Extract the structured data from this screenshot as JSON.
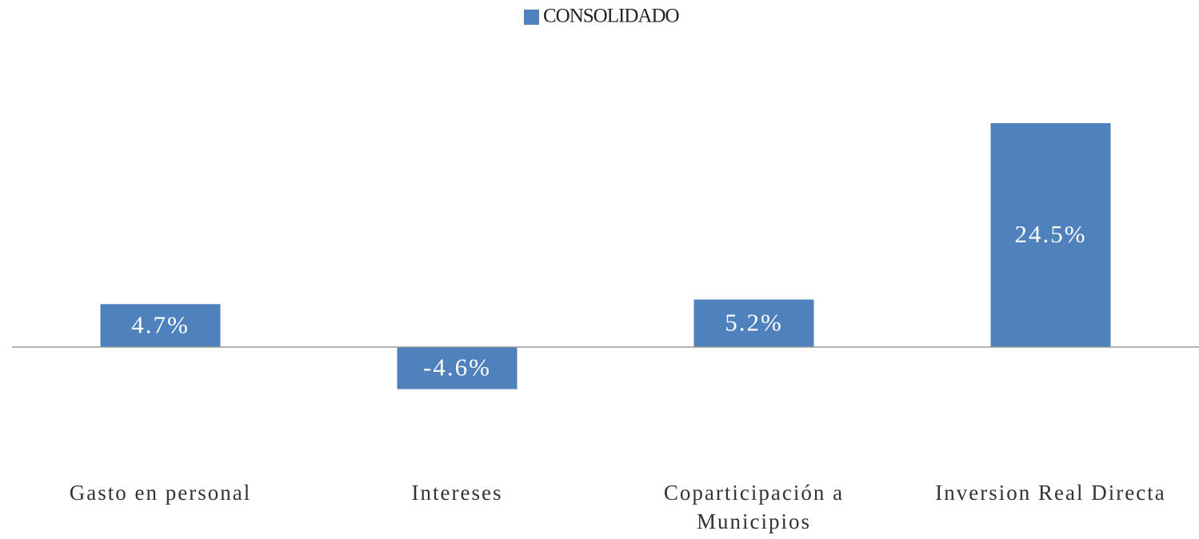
{
  "chart_data": {
    "type": "bar",
    "legend": "CONSOLIDADO",
    "series": [
      {
        "name": "CONSOLIDADO",
        "color": "#4f81bd",
        "values": [
          4.7,
          -4.6,
          5.2,
          24.5
        ],
        "value_labels": [
          "4.7%",
          "-4.6%",
          "5.2%",
          "24.5%"
        ]
      }
    ],
    "categories": [
      "Gasto en personal",
      "Intereses",
      "Coparticipación a Municipios",
      "Inversion Real Directa"
    ]
  }
}
